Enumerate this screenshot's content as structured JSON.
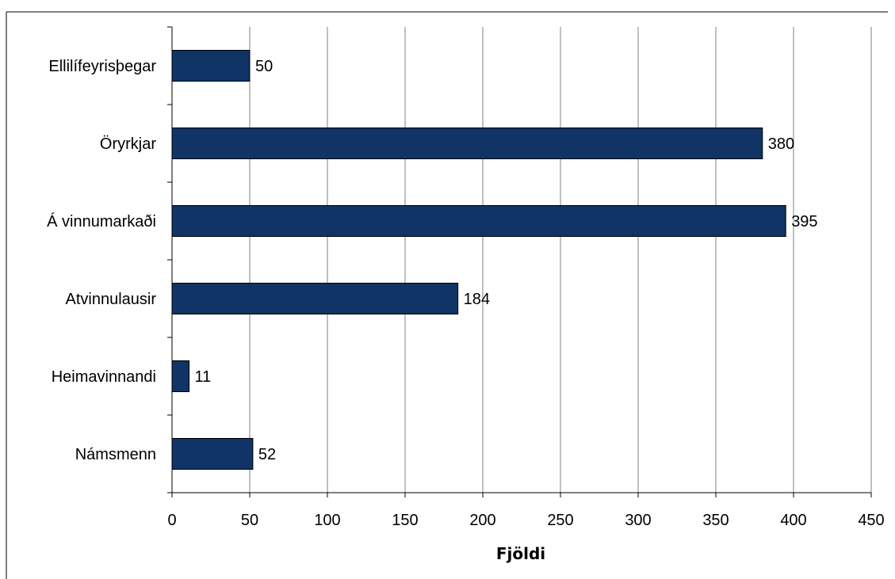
{
  "chart_data": {
    "type": "bar",
    "orientation": "horizontal",
    "categories": [
      "Ellilífeyrisþegar",
      "Öryrkjar",
      "Á vinnumarkaði",
      "Atvinnulausir",
      "Heimavinnandi",
      "Námsmenn"
    ],
    "values": [
      50,
      380,
      395,
      184,
      11,
      52
    ],
    "data_labels": [
      "50",
      "380",
      "395",
      "184",
      "11",
      "52"
    ],
    "title": "",
    "xlabel": "Fjöldi",
    "ylabel": "",
    "xlim": [
      0,
      450
    ],
    "x_ticks": [
      0,
      50,
      100,
      150,
      200,
      250,
      300,
      350,
      400,
      450
    ],
    "x_tick_labels": [
      "0",
      "50",
      "100",
      "150",
      "200",
      "250",
      "300",
      "350",
      "400",
      "450"
    ],
    "grid": "vertical",
    "legend": "none",
    "colors": {
      "bar_fill": "#0f3465",
      "bar_stroke": "#000000",
      "grid": "#808080",
      "axis": "#000000",
      "frame": "#000000"
    }
  }
}
